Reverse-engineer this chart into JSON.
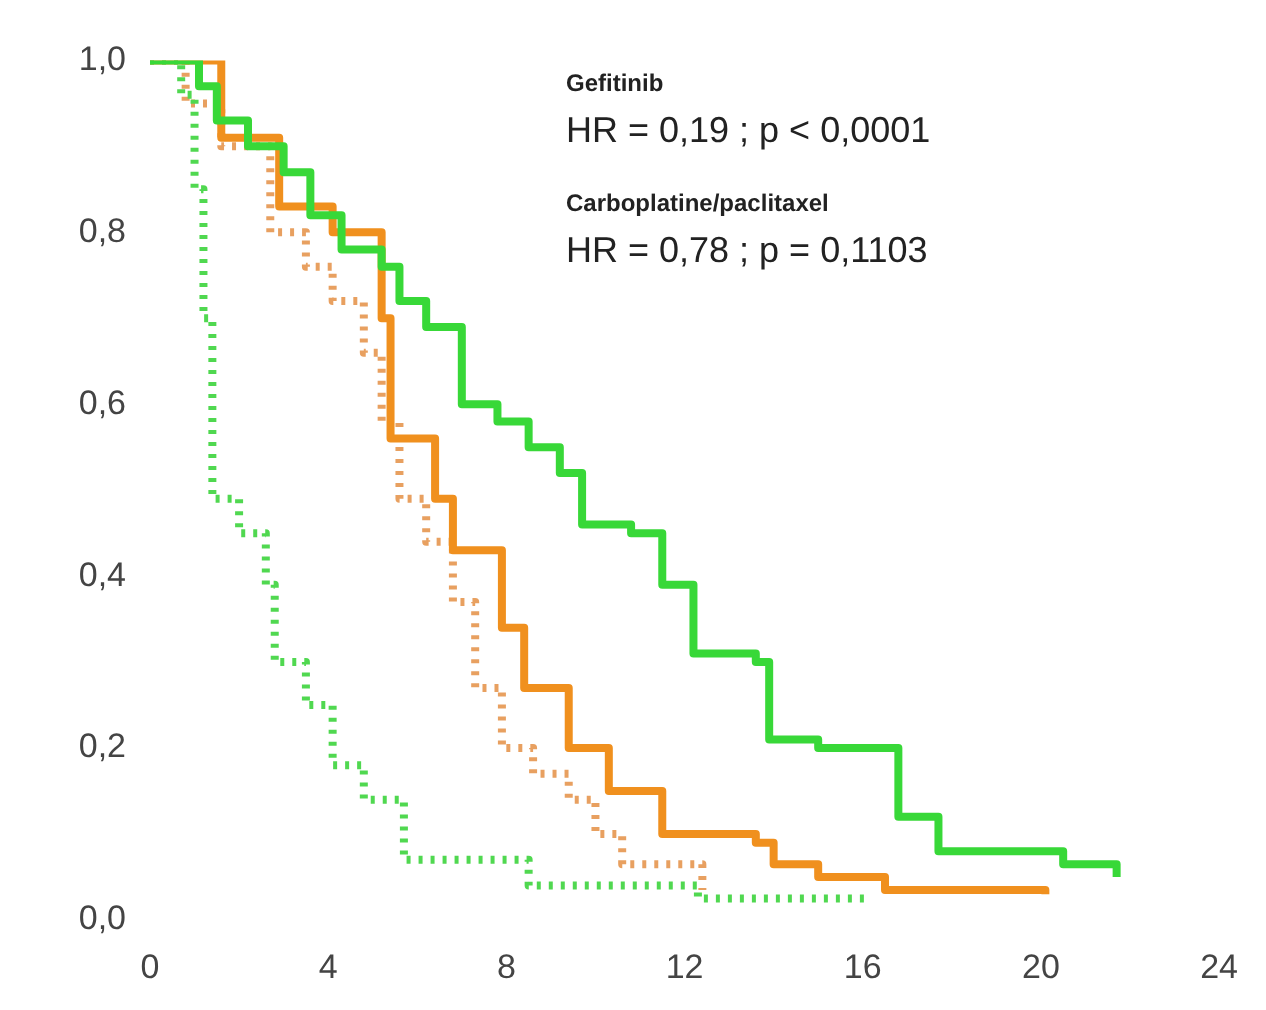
{
  "chart_data": {
    "type": "step",
    "annotations": [
      "Gefitinib",
      "HR = 0,19 ; p < 0,0001",
      "Carboplatine/paclitaxel",
      "HR = 0,78 ; p = 0,1103"
    ],
    "xlim": [
      0,
      24
    ],
    "xticks": [
      0,
      4,
      8,
      12,
      16,
      20,
      24
    ],
    "ylim": [
      0,
      1
    ],
    "yticks": [
      {
        "value": 0,
        "label": "0,0"
      },
      {
        "value": 0.2,
        "label": "0,2"
      },
      {
        "value": 0.4,
        "label": "0,4"
      },
      {
        "value": 0.6,
        "label": "0,6"
      },
      {
        "value": 0.8,
        "label": "0,8"
      },
      {
        "value": 1,
        "label": "1,0"
      }
    ],
    "grid": false,
    "legend": false,
    "marker": "none",
    "series": [
      {
        "color": "#38d838",
        "line_style": "solid",
        "x": [
          0,
          1.1,
          1.5,
          2.2,
          3,
          3.6,
          4.3,
          5.2,
          5.6,
          6.2,
          7,
          7.8,
          8.5,
          9.2,
          9.7,
          10.8,
          11.5,
          12.2,
          13.6,
          13.9,
          15,
          16.8,
          17.7,
          20.5,
          21.7
        ],
        "values": [
          1,
          0.97,
          0.93,
          0.9,
          0.87,
          0.82,
          0.78,
          0.76,
          0.72,
          0.69,
          0.6,
          0.58,
          0.55,
          0.52,
          0.46,
          0.45,
          0.39,
          0.31,
          0.3,
          0.21,
          0.2,
          0.12,
          0.08,
          0.065,
          0.05
        ]
      },
      {
        "color": "#50d850",
        "line_style": "dotted",
        "x": [
          0,
          0.7,
          1.0,
          1.2,
          1.4,
          2.0,
          2.6,
          2.8,
          3.5,
          4.1,
          4.8,
          5.7,
          7.9,
          8.5,
          12.3,
          16.2
        ],
        "values": [
          1,
          0.96,
          0.85,
          0.7,
          0.49,
          0.45,
          0.39,
          0.3,
          0.25,
          0.18,
          0.14,
          0.07,
          0.07,
          0.04,
          0.025,
          0.025
        ]
      },
      {
        "color": "#f0901e",
        "line_style": "solid",
        "x": [
          0,
          1.6,
          2.9,
          4.1,
          5.2,
          5.4,
          6.4,
          6.8,
          7.9,
          8.4,
          9.4,
          10.3,
          11.5,
          13.6,
          14,
          15,
          16.5,
          20.1
        ],
        "values": [
          1,
          0.91,
          0.83,
          0.8,
          0.7,
          0.56,
          0.49,
          0.43,
          0.34,
          0.27,
          0.2,
          0.15,
          0.1,
          0.09,
          0.065,
          0.05,
          0.035,
          0.03
        ]
      },
      {
        "color": "#e8a060",
        "line_style": "dotted",
        "x": [
          0,
          0.8,
          1.6,
          2.7,
          3.5,
          4.1,
          4.8,
          5.2,
          5.6,
          6.2,
          6.8,
          7.3,
          7.9,
          8.6,
          9.4,
          10,
          10.6,
          12.4
        ],
        "values": [
          1,
          0.95,
          0.9,
          0.8,
          0.76,
          0.72,
          0.66,
          0.58,
          0.49,
          0.44,
          0.37,
          0.27,
          0.2,
          0.17,
          0.14,
          0.1,
          0.065,
          0.035
        ]
      }
    ]
  }
}
